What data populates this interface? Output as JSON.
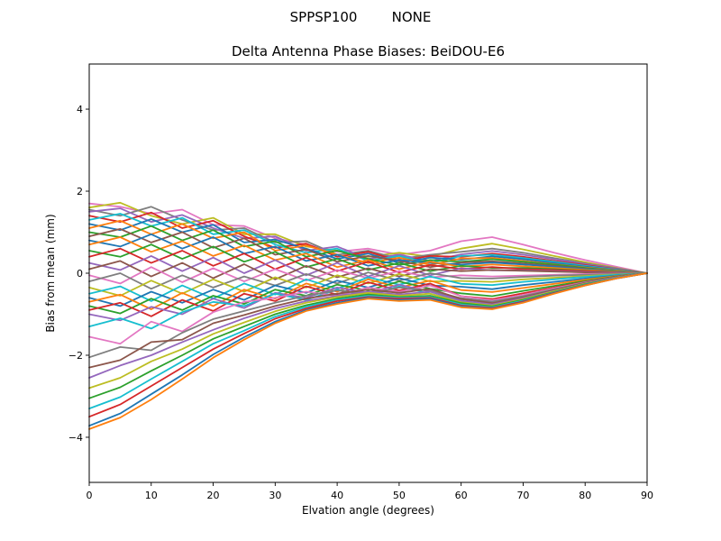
{
  "figure": {
    "suptitle": "SPPSP100        NONE",
    "title": "Delta Antenna Phase Biases: BeiDOU-E6",
    "xlabel": "Elvation angle (degrees)",
    "ylabel": "Bias from mean (mm)",
    "background": "#ffffff",
    "frame_color": "#000000"
  },
  "chart_data": {
    "type": "line",
    "suptitle": "SPPSP100        NONE",
    "title": "Delta Antenna Phase Biases: BeiDOU-E6",
    "xlabel": "Elvation angle (degrees)",
    "ylabel": "Bias from mean (mm)",
    "xlim": [
      0,
      90
    ],
    "ylim": [
      -5.1,
      5.1
    ],
    "x_ticks": [
      0,
      10,
      20,
      30,
      40,
      50,
      60,
      70,
      80,
      90
    ],
    "x_tick_labels": [
      "0",
      "10",
      "20",
      "30",
      "40",
      "50",
      "60",
      "70",
      "80",
      "90"
    ],
    "y_ticks": [
      -4,
      -2,
      0,
      2,
      4
    ],
    "y_tick_labels": [
      "−4",
      "−2",
      "0",
      "2",
      "4"
    ],
    "grid": false,
    "legend": null,
    "line_width": 1.8,
    "x": [
      0,
      5,
      10,
      15,
      20,
      25,
      30,
      35,
      40,
      45,
      50,
      55,
      60,
      65,
      70,
      75,
      80,
      85,
      90
    ],
    "series": [
      {
        "color": "#e377c2",
        "values": [
          1.7,
          1.62,
          1.45,
          1.55,
          1.18,
          1.15,
          0.85,
          0.7,
          0.52,
          0.6,
          0.45,
          0.55,
          0.78,
          0.88,
          0.7,
          0.5,
          0.32,
          0.16,
          0
        ]
      },
      {
        "color": "#bcbd22",
        "values": [
          1.6,
          1.72,
          1.4,
          1.2,
          1.35,
          0.95,
          0.95,
          0.65,
          0.55,
          0.4,
          0.5,
          0.4,
          0.6,
          0.72,
          0.58,
          0.42,
          0.27,
          0.13,
          0
        ]
      },
      {
        "color": "#7f7f7f",
        "values": [
          1.55,
          1.4,
          1.62,
          1.3,
          1.05,
          1.1,
          0.75,
          0.78,
          0.45,
          0.55,
          0.35,
          0.45,
          0.52,
          0.6,
          0.5,
          0.37,
          0.24,
          0.12,
          0
        ]
      },
      {
        "color": "#9467bd",
        "values": [
          1.5,
          1.58,
          1.25,
          1.42,
          1.1,
          0.85,
          0.9,
          0.55,
          0.65,
          0.35,
          0.45,
          0.3,
          0.46,
          0.54,
          0.45,
          0.34,
          0.22,
          0.11,
          0
        ]
      },
      {
        "color": "#d62728",
        "values": [
          1.4,
          1.25,
          1.48,
          1.1,
          1.28,
          0.9,
          0.62,
          0.72,
          0.4,
          0.52,
          0.3,
          0.42,
          0.4,
          0.48,
          0.4,
          0.3,
          0.2,
          0.1,
          0
        ]
      },
      {
        "color": "#17becf",
        "values": [
          1.3,
          1.45,
          1.15,
          1.35,
          0.95,
          1.05,
          0.7,
          0.5,
          0.6,
          0.3,
          0.42,
          0.25,
          0.42,
          0.45,
          0.37,
          0.28,
          0.18,
          0.09,
          0
        ]
      },
      {
        "color": "#1f77b4",
        "values": [
          1.2,
          1.05,
          1.32,
          1.0,
          1.18,
          0.75,
          0.82,
          0.6,
          0.35,
          0.48,
          0.25,
          0.38,
          0.33,
          0.41,
          0.34,
          0.25,
          0.16,
          0.08,
          0
        ]
      },
      {
        "color": "#ff7f0e",
        "values": [
          1.1,
          1.28,
          0.95,
          1.2,
          0.85,
          1.0,
          0.55,
          0.68,
          0.45,
          0.25,
          0.38,
          0.2,
          0.36,
          0.37,
          0.3,
          0.22,
          0.14,
          0.07,
          0
        ]
      },
      {
        "color": "#2ca02c",
        "values": [
          1.0,
          0.88,
          1.15,
          0.8,
          1.05,
          0.65,
          0.78,
          0.4,
          0.55,
          0.35,
          0.2,
          0.32,
          0.28,
          0.34,
          0.28,
          0.21,
          0.13,
          0.06,
          0
        ]
      },
      {
        "color": "#8c564b",
        "values": [
          0.9,
          1.08,
          0.75,
          1.0,
          0.62,
          0.85,
          0.45,
          0.58,
          0.28,
          0.42,
          0.3,
          0.15,
          0.26,
          0.29,
          0.24,
          0.18,
          0.11,
          0.05,
          0
        ]
      },
      {
        "color": "#1f77b4",
        "values": [
          0.8,
          0.65,
          0.95,
          0.6,
          0.88,
          0.48,
          0.65,
          0.3,
          0.45,
          0.18,
          0.32,
          0.25,
          0.21,
          0.26,
          0.21,
          0.16,
          0.1,
          0.05,
          0
        ]
      },
      {
        "color": "#ff7f0e",
        "values": [
          0.7,
          0.88,
          0.52,
          0.78,
          0.42,
          0.68,
          0.32,
          0.48,
          0.15,
          0.32,
          0.1,
          0.28,
          0.16,
          0.21,
          0.17,
          0.13,
          0.08,
          0.04,
          0
        ]
      },
      {
        "color": "#2ca02c",
        "values": [
          0.55,
          0.4,
          0.7,
          0.35,
          0.65,
          0.28,
          0.52,
          0.15,
          0.35,
          0.08,
          0.25,
          0.05,
          0.18,
          0.13,
          0.13,
          0.1,
          0.06,
          0.03,
          0
        ]
      },
      {
        "color": "#d62728",
        "values": [
          0.4,
          0.6,
          0.25,
          0.55,
          0.18,
          0.48,
          0.1,
          0.38,
          0.05,
          0.28,
          0.02,
          0.2,
          0.1,
          0.15,
          0.1,
          0.08,
          0.05,
          0.02,
          0
        ]
      },
      {
        "color": "#9467bd",
        "values": [
          0.25,
          0.08,
          0.42,
          0.05,
          0.38,
          0.0,
          0.32,
          -0.05,
          0.25,
          -0.08,
          0.18,
          -0.05,
          0.12,
          0.07,
          0.07,
          0.05,
          0.03,
          0.02,
          0
        ]
      },
      {
        "color": "#8c564b",
        "values": [
          0.1,
          0.3,
          -0.08,
          0.25,
          -0.12,
          0.22,
          -0.15,
          0.18,
          -0.1,
          0.12,
          -0.08,
          0.1,
          0.05,
          0.08,
          0.06,
          0.04,
          0.02,
          0.01,
          0
        ]
      },
      {
        "color": "#e377c2",
        "values": [
          -0.05,
          -0.25,
          0.15,
          -0.22,
          0.12,
          -0.2,
          0.1,
          -0.18,
          0.08,
          -0.12,
          0.05,
          -0.1,
          -0.05,
          -0.08,
          -0.06,
          -0.04,
          -0.02,
          -0.01,
          0
        ]
      },
      {
        "color": "#7f7f7f",
        "values": [
          -0.2,
          0.0,
          -0.38,
          -0.05,
          -0.35,
          -0.08,
          -0.3,
          -0.02,
          -0.25,
          0.02,
          -0.18,
          0.0,
          -0.12,
          -0.13,
          -0.09,
          -0.06,
          -0.04,
          -0.02,
          0
        ]
      },
      {
        "color": "#bcbd22",
        "values": [
          -0.35,
          -0.55,
          -0.18,
          -0.5,
          -0.15,
          -0.45,
          -0.1,
          -0.35,
          -0.05,
          -0.25,
          -0.02,
          -0.2,
          -0.19,
          -0.21,
          -0.15,
          -0.11,
          -0.07,
          -0.03,
          0
        ]
      },
      {
        "color": "#17becf",
        "values": [
          -0.5,
          -0.32,
          -0.68,
          -0.3,
          -0.62,
          -0.25,
          -0.52,
          -0.15,
          -0.38,
          -0.1,
          -0.28,
          -0.08,
          -0.26,
          -0.29,
          -0.21,
          -0.15,
          -0.09,
          -0.04,
          0
        ]
      },
      {
        "color": "#1f77b4",
        "values": [
          -0.6,
          -0.8,
          -0.45,
          -0.72,
          -0.4,
          -0.65,
          -0.3,
          -0.48,
          -0.18,
          -0.35,
          -0.12,
          -0.3,
          -0.33,
          -0.39,
          -0.29,
          -0.21,
          -0.13,
          -0.06,
          0
        ]
      },
      {
        "color": "#ff7f0e",
        "values": [
          -0.7,
          -0.52,
          -0.88,
          -0.48,
          -0.8,
          -0.4,
          -0.62,
          -0.25,
          -0.45,
          -0.15,
          -0.35,
          -0.18,
          -0.41,
          -0.46,
          -0.36,
          -0.26,
          -0.16,
          -0.07,
          0
        ]
      },
      {
        "color": "#2ca02c",
        "values": [
          -0.8,
          -0.98,
          -0.62,
          -0.9,
          -0.55,
          -0.75,
          -0.4,
          -0.55,
          -0.28,
          -0.42,
          -0.2,
          -0.38,
          -0.49,
          -0.56,
          -0.43,
          -0.31,
          -0.19,
          -0.08,
          0
        ]
      },
      {
        "color": "#d62728",
        "values": [
          -0.9,
          -0.72,
          -1.05,
          -0.65,
          -0.92,
          -0.5,
          -0.68,
          -0.32,
          -0.52,
          -0.22,
          -0.42,
          -0.25,
          -0.56,
          -0.63,
          -0.49,
          -0.35,
          -0.21,
          -0.09,
          0
        ]
      },
      {
        "color": "#9467bd",
        "values": [
          -1.0,
          -1.15,
          -0.82,
          -1.0,
          -0.62,
          -0.85,
          -0.48,
          -0.6,
          -0.35,
          -0.48,
          -0.28,
          -0.45,
          -0.63,
          -0.71,
          -0.56,
          -0.39,
          -0.23,
          -0.1,
          0
        ]
      },
      {
        "color": "#17becf",
        "values": [
          -1.3,
          -1.1,
          -1.35,
          -0.95,
          -0.7,
          -0.8,
          -0.5,
          -0.65,
          -0.4,
          -0.55,
          -0.32,
          -0.5,
          -0.69,
          -0.76,
          -0.61,
          -0.43,
          -0.26,
          -0.11,
          0
        ]
      },
      {
        "color": "#e377c2",
        "values": [
          -1.55,
          -1.72,
          -1.18,
          -1.42,
          -0.95,
          -0.7,
          -0.6,
          -0.45,
          -0.55,
          -0.35,
          -0.45,
          -0.3,
          -0.56,
          -0.66,
          -0.53,
          -0.37,
          -0.22,
          -0.1,
          0
        ]
      },
      {
        "color": "#7f7f7f",
        "values": [
          -2.05,
          -1.8,
          -1.88,
          -1.45,
          -1.12,
          -0.92,
          -0.72,
          -0.55,
          -0.42,
          -0.5,
          -0.35,
          -0.42,
          -0.61,
          -0.69,
          -0.56,
          -0.39,
          -0.23,
          -0.1,
          0
        ]
      },
      {
        "color": "#8c564b",
        "values": [
          -2.3,
          -2.12,
          -1.68,
          -1.62,
          -1.22,
          -1.02,
          -0.8,
          -0.62,
          -0.5,
          -0.4,
          -0.48,
          -0.38,
          -0.63,
          -0.73,
          -0.59,
          -0.41,
          -0.24,
          -0.11,
          0
        ]
      },
      {
        "color": "#9467bd",
        "values": [
          -2.55,
          -2.25,
          -2.0,
          -1.68,
          -1.38,
          -1.1,
          -0.86,
          -0.68,
          -0.55,
          -0.45,
          -0.52,
          -0.45,
          -0.67,
          -0.76,
          -0.61,
          -0.43,
          -0.25,
          -0.11,
          0
        ]
      },
      {
        "color": "#bcbd22",
        "values": [
          -2.8,
          -2.55,
          -2.15,
          -1.85,
          -1.48,
          -1.2,
          -0.93,
          -0.72,
          -0.58,
          -0.48,
          -0.55,
          -0.5,
          -0.71,
          -0.79,
          -0.63,
          -0.44,
          -0.26,
          -0.12,
          0
        ]
      },
      {
        "color": "#2ca02c",
        "values": [
          -3.05,
          -2.78,
          -2.38,
          -2.0,
          -1.6,
          -1.3,
          -1.0,
          -0.78,
          -0.62,
          -0.52,
          -0.58,
          -0.55,
          -0.73,
          -0.81,
          -0.65,
          -0.46,
          -0.27,
          -0.12,
          0
        ]
      },
      {
        "color": "#17becf",
        "values": [
          -3.3,
          -3.02,
          -2.58,
          -2.15,
          -1.72,
          -1.4,
          -1.06,
          -0.82,
          -0.65,
          -0.55,
          -0.6,
          -0.58,
          -0.76,
          -0.83,
          -0.67,
          -0.47,
          -0.28,
          -0.12,
          0
        ]
      },
      {
        "color": "#d62728",
        "values": [
          -3.5,
          -3.2,
          -2.75,
          -2.3,
          -1.85,
          -1.47,
          -1.11,
          -0.86,
          -0.68,
          -0.58,
          -0.62,
          -0.6,
          -0.79,
          -0.85,
          -0.69,
          -0.48,
          -0.29,
          -0.13,
          0
        ]
      },
      {
        "color": "#1f77b4",
        "values": [
          -3.72,
          -3.42,
          -2.95,
          -2.48,
          -1.98,
          -1.56,
          -1.18,
          -0.9,
          -0.72,
          -0.6,
          -0.65,
          -0.62,
          -0.81,
          -0.87,
          -0.71,
          -0.49,
          -0.3,
          -0.13,
          0
        ]
      },
      {
        "color": "#ff7f0e",
        "values": [
          -3.8,
          -3.52,
          -3.08,
          -2.58,
          -2.06,
          -1.62,
          -1.22,
          -0.92,
          -0.75,
          -0.62,
          -0.68,
          -0.65,
          -0.83,
          -0.88,
          -0.72,
          -0.5,
          -0.3,
          -0.13,
          0
        ]
      }
    ]
  }
}
